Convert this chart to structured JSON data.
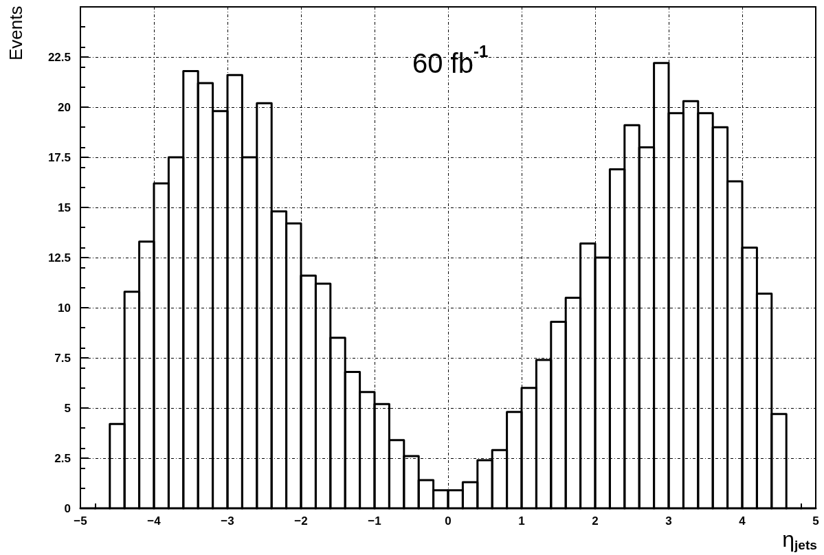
{
  "chart_data": {
    "type": "histogram",
    "xlabel": "η$_{jets}$",
    "ylabel": "Events",
    "annotations": [
      "60 fb$^{-1}$"
    ],
    "color": "#000000",
    "bins": [
      -5,
      -4.8,
      -4.6,
      -4.4,
      -4.2,
      -4,
      -3.8,
      -3.6,
      -3.4,
      -3.2,
      -3,
      -2.8,
      -2.6,
      -2.4,
      -2.2,
      -2,
      -1.8,
      -1.6,
      -1.4,
      -1.2,
      -1,
      -0.8,
      -0.6,
      -0.4,
      -0.2,
      0,
      0.2,
      0.4,
      0.6,
      0.8,
      1,
      1.2,
      1.4,
      1.6,
      1.8,
      2,
      2.2,
      2.4,
      2.6,
      2.8,
      3,
      3.2,
      3.4,
      3.6,
      3.8,
      4,
      4.2,
      4.4,
      4.6,
      4.8,
      5
    ],
    "values": [
      0,
      0,
      4.2,
      10.8,
      13.3,
      16.2,
      17.5,
      21.8,
      21.2,
      19.8,
      21.6,
      17.5,
      20.2,
      14.8,
      14.2,
      11.6,
      11.2,
      8.5,
      6.8,
      5.8,
      5.2,
      3.4,
      2.6,
      1.4,
      0.9,
      0.9,
      1.3,
      2.4,
      2.9,
      4.8,
      6.0,
      7.4,
      9.3,
      10.5,
      13.2,
      12.5,
      16.9,
      19.1,
      18.0,
      22.2,
      19.7,
      20.3,
      19.7,
      19.0,
      16.3,
      13.0,
      10.7,
      4.7,
      0,
      0
    ],
    "xlim": [
      -5,
      5
    ],
    "xticks": [
      -5,
      -4,
      -3,
      -2,
      -1,
      0,
      1,
      2,
      3,
      4,
      5
    ],
    "ylim": [
      0,
      25
    ],
    "yticks": [
      0,
      2.5,
      5,
      7.5,
      10,
      12.5,
      15,
      17.5,
      20,
      22.5,
      {
        "value": 25,
        "label": null
      }
    ],
    "grid": true
  }
}
